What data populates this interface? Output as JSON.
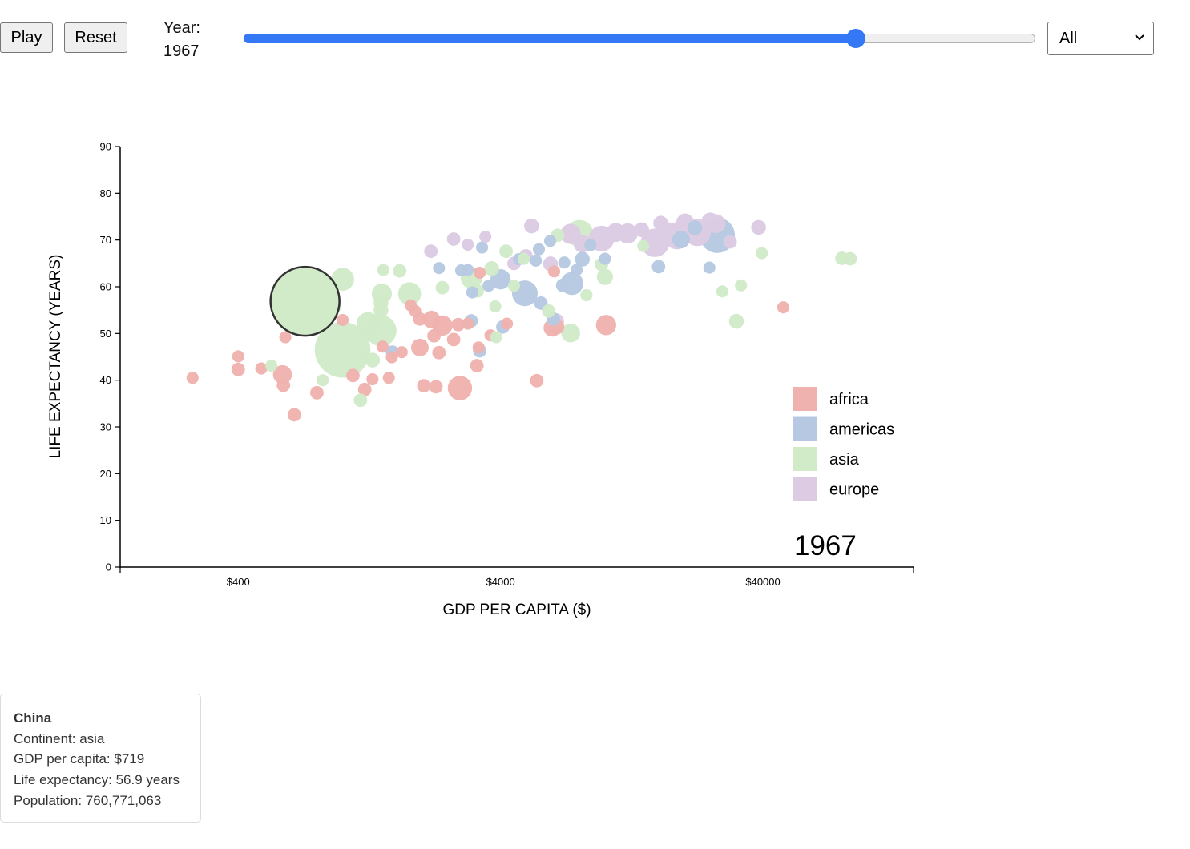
{
  "controls": {
    "play_label": "Play",
    "reset_label": "Reset",
    "year_label": "Year:",
    "year_value": "1967",
    "slider": {
      "min": 1952,
      "max": 2007,
      "value": 1967,
      "fraction": 0.773
    },
    "continent_filter": {
      "selected": "All"
    }
  },
  "colors": {
    "africa": "#efb2ae",
    "americas": "#b7c9e2",
    "asia": "#d1eac8",
    "europe": "#dccbe3",
    "accent": "#3478f6",
    "highlight_stroke": "#333333"
  },
  "chart_data": {
    "type": "scatter",
    "xlabel": "GDP PER CAPITA ($)",
    "ylabel": "LIFE EXPECTANCY (YEARS)",
    "x_scale": "log",
    "xlim": [
      142,
      150000
    ],
    "ylim": [
      0,
      90
    ],
    "x_ticks": [
      400,
      4000,
      40000
    ],
    "x_tick_labels": [
      "$400",
      "$4000",
      "$40000"
    ],
    "y_ticks": [
      0,
      10,
      20,
      30,
      40,
      50,
      60,
      70,
      80,
      90
    ],
    "y_tick_labels": [
      "0",
      "10",
      "20",
      "30",
      "40",
      "50",
      "60",
      "70",
      "80",
      "90"
    ],
    "year_watermark": "1967",
    "legend": {
      "position": "bottom-right",
      "entries": [
        "africa",
        "americas",
        "asia",
        "europe"
      ]
    },
    "highlighted": {
      "name": "China",
      "continent": "asia",
      "gdp": 719,
      "life": 56.9,
      "pop": 760771063
    },
    "points": [
      {
        "c": "africa",
        "gdp": 268,
        "life": 40.5,
        "pop": 3
      },
      {
        "c": "africa",
        "gdp": 400,
        "life": 45.1,
        "pop": 3
      },
      {
        "c": "africa",
        "gdp": 400,
        "life": 42.3,
        "pop": 4
      },
      {
        "c": "africa",
        "gdp": 490,
        "life": 42.5,
        "pop": 3
      },
      {
        "c": "africa",
        "gdp": 590,
        "life": 41.2,
        "pop": 8
      },
      {
        "c": "africa",
        "gdp": 595,
        "life": 38.9,
        "pop": 4
      },
      {
        "c": "africa",
        "gdp": 655,
        "life": 32.6,
        "pop": 4
      },
      {
        "c": "africa",
        "gdp": 605,
        "life": 49.2,
        "pop": 3
      },
      {
        "c": "africa",
        "gdp": 798,
        "life": 37.3,
        "pop": 4
      },
      {
        "c": "africa",
        "gdp": 1000,
        "life": 52.9,
        "pop": 3
      },
      {
        "c": "africa",
        "gdp": 1095,
        "life": 41.0,
        "pop": 4
      },
      {
        "c": "africa",
        "gdp": 1215,
        "life": 38.0,
        "pop": 4
      },
      {
        "c": "africa",
        "gdp": 1300,
        "life": 40.2,
        "pop": 3
      },
      {
        "c": "africa",
        "gdp": 1420,
        "life": 47.2,
        "pop": 3
      },
      {
        "c": "africa",
        "gdp": 1500,
        "life": 40.5,
        "pop": 3
      },
      {
        "c": "africa",
        "gdp": 1540,
        "life": 44.9,
        "pop": 3
      },
      {
        "c": "africa",
        "gdp": 1680,
        "life": 46.0,
        "pop": 3
      },
      {
        "c": "africa",
        "gdp": 1820,
        "life": 56.0,
        "pop": 3
      },
      {
        "c": "africa",
        "gdp": 1890,
        "life": 54.8,
        "pop": 3
      },
      {
        "c": "africa",
        "gdp": 1970,
        "life": 53.1,
        "pop": 4
      },
      {
        "c": "africa",
        "gdp": 1970,
        "life": 47.0,
        "pop": 7
      },
      {
        "c": "africa",
        "gdp": 2040,
        "life": 38.8,
        "pop": 4
      },
      {
        "c": "africa",
        "gdp": 2180,
        "life": 53.0,
        "pop": 7
      },
      {
        "c": "africa",
        "gdp": 2230,
        "life": 49.5,
        "pop": 4
      },
      {
        "c": "africa",
        "gdp": 2270,
        "life": 38.6,
        "pop": 4
      },
      {
        "c": "africa",
        "gdp": 2330,
        "life": 45.9,
        "pop": 4
      },
      {
        "c": "africa",
        "gdp": 2400,
        "life": 51.7,
        "pop": 9
      },
      {
        "c": "africa",
        "gdp": 2650,
        "life": 48.7,
        "pop": 4
      },
      {
        "c": "africa",
        "gdp": 2760,
        "life": 51.9,
        "pop": 4
      },
      {
        "c": "africa",
        "gdp": 2800,
        "life": 38.3,
        "pop": 12
      },
      {
        "c": "africa",
        "gdp": 3000,
        "life": 52.1,
        "pop": 3
      },
      {
        "c": "africa",
        "gdp": 3250,
        "life": 43.1,
        "pop": 4
      },
      {
        "c": "africa",
        "gdp": 3300,
        "life": 47.0,
        "pop": 3
      },
      {
        "c": "africa",
        "gdp": 3330,
        "life": 63.0,
        "pop": 3
      },
      {
        "c": "africa",
        "gdp": 3660,
        "life": 49.6,
        "pop": 3
      },
      {
        "c": "africa",
        "gdp": 4230,
        "life": 52.1,
        "pop": 3
      },
      {
        "c": "africa",
        "gdp": 5500,
        "life": 39.9,
        "pop": 4
      },
      {
        "c": "africa",
        "gdp": 6300,
        "life": 51.2,
        "pop": 7
      },
      {
        "c": "africa",
        "gdp": 6400,
        "life": 63.3,
        "pop": 3
      },
      {
        "c": "africa",
        "gdp": 6560,
        "life": 51.4,
        "pop": 5
      },
      {
        "c": "africa",
        "gdp": 10100,
        "life": 51.8,
        "pop": 9
      },
      {
        "c": "africa",
        "gdp": 47800,
        "life": 55.6,
        "pop": 3
      },
      {
        "c": "americas",
        "gdp": 1550,
        "life": 46.0,
        "pop": 4
      },
      {
        "c": "americas",
        "gdp": 2330,
        "life": 64.0,
        "pop": 3
      },
      {
        "c": "americas",
        "gdp": 2830,
        "life": 63.5,
        "pop": 3
      },
      {
        "c": "americas",
        "gdp": 3000,
        "life": 63.6,
        "pop": 3
      },
      {
        "c": "americas",
        "gdp": 3090,
        "life": 52.7,
        "pop": 4
      },
      {
        "c": "americas",
        "gdp": 3120,
        "life": 58.8,
        "pop": 3
      },
      {
        "c": "americas",
        "gdp": 3400,
        "life": 68.4,
        "pop": 3
      },
      {
        "c": "americas",
        "gdp": 3330,
        "life": 46.3,
        "pop": 4
      },
      {
        "c": "americas",
        "gdp": 3600,
        "life": 60.2,
        "pop": 3
      },
      {
        "c": "americas",
        "gdp": 4000,
        "life": 61.6,
        "pop": 9
      },
      {
        "c": "americas",
        "gdp": 4080,
        "life": 51.4,
        "pop": 4
      },
      {
        "c": "americas",
        "gdp": 4700,
        "life": 65.9,
        "pop": 3
      },
      {
        "c": "americas",
        "gdp": 4950,
        "life": 58.6,
        "pop": 13
      },
      {
        "c": "americas",
        "gdp": 5450,
        "life": 65.6,
        "pop": 3
      },
      {
        "c": "americas",
        "gdp": 5600,
        "life": 68.0,
        "pop": 3
      },
      {
        "c": "americas",
        "gdp": 5700,
        "life": 56.5,
        "pop": 4
      },
      {
        "c": "americas",
        "gdp": 6180,
        "life": 69.8,
        "pop": 3
      },
      {
        "c": "americas",
        "gdp": 6360,
        "life": 53.1,
        "pop": 4
      },
      {
        "c": "americas",
        "gdp": 6900,
        "life": 60.3,
        "pop": 4
      },
      {
        "c": "americas",
        "gdp": 7000,
        "life": 65.2,
        "pop": 3
      },
      {
        "c": "americas",
        "gdp": 7480,
        "life": 60.7,
        "pop": 11
      },
      {
        "c": "americas",
        "gdp": 7800,
        "life": 63.6,
        "pop": 3
      },
      {
        "c": "americas",
        "gdp": 8200,
        "life": 65.9,
        "pop": 5
      },
      {
        "c": "americas",
        "gdp": 8800,
        "life": 68.9,
        "pop": 3
      },
      {
        "c": "americas",
        "gdp": 10000,
        "life": 66.0,
        "pop": 3
      },
      {
        "c": "americas",
        "gdp": 16000,
        "life": 64.3,
        "pop": 4
      },
      {
        "c": "americas",
        "gdp": 19500,
        "life": 70.1,
        "pop": 7
      },
      {
        "c": "americas",
        "gdp": 22000,
        "life": 72.6,
        "pop": 5
      },
      {
        "c": "americas",
        "gdp": 26800,
        "life": 71.0,
        "pop": 20
      },
      {
        "c": "americas",
        "gdp": 25000,
        "life": 64.1,
        "pop": 3
      },
      {
        "c": "asia",
        "gdp": 719,
        "life": 56.9,
        "pop": 41
      },
      {
        "c": "asia",
        "gdp": 1000,
        "life": 46.5,
        "pop": 35
      },
      {
        "c": "asia",
        "gdp": 535,
        "life": 43.1,
        "pop": 3
      },
      {
        "c": "asia",
        "gdp": 1000,
        "life": 61.6,
        "pop": 11
      },
      {
        "c": "asia",
        "gdp": 1250,
        "life": 52.1,
        "pop": 11
      },
      {
        "c": "asia",
        "gdp": 1400,
        "life": 50.6,
        "pop": 17
      },
      {
        "c": "asia",
        "gdp": 1410,
        "life": 58.5,
        "pop": 9
      },
      {
        "c": "asia",
        "gdp": 1430,
        "life": 63.6,
        "pop": 3
      },
      {
        "c": "asia",
        "gdp": 1300,
        "life": 44.3,
        "pop": 5
      },
      {
        "c": "asia",
        "gdp": 1400,
        "life": 55.0,
        "pop": 5
      },
      {
        "c": "asia",
        "gdp": 1400,
        "life": 56.5,
        "pop": 5
      },
      {
        "c": "asia",
        "gdp": 1170,
        "life": 35.7,
        "pop": 4
      },
      {
        "c": "asia",
        "gdp": 940,
        "life": 55.8,
        "pop": 3
      },
      {
        "c": "asia",
        "gdp": 840,
        "life": 40.0,
        "pop": 3
      },
      {
        "c": "asia",
        "gdp": 1650,
        "life": 63.4,
        "pop": 4
      },
      {
        "c": "asia",
        "gdp": 1800,
        "life": 58.5,
        "pop": 11
      },
      {
        "c": "asia",
        "gdp": 2400,
        "life": 59.8,
        "pop": 4
      },
      {
        "c": "asia",
        "gdp": 3100,
        "life": 61.9,
        "pop": 10
      },
      {
        "c": "asia",
        "gdp": 3260,
        "life": 59.1,
        "pop": 4
      },
      {
        "c": "asia",
        "gdp": 3700,
        "life": 63.9,
        "pop": 5
      },
      {
        "c": "asia",
        "gdp": 3820,
        "life": 55.8,
        "pop": 3
      },
      {
        "c": "asia",
        "gdp": 4500,
        "life": 60.2,
        "pop": 3
      },
      {
        "c": "asia",
        "gdp": 4200,
        "life": 67.6,
        "pop": 4
      },
      {
        "c": "asia",
        "gdp": 4900,
        "life": 66.0,
        "pop": 3
      },
      {
        "c": "asia",
        "gdp": 6100,
        "life": 54.8,
        "pop": 4
      },
      {
        "c": "asia",
        "gdp": 6600,
        "life": 71.0,
        "pop": 4
      },
      {
        "c": "asia",
        "gdp": 7400,
        "life": 50.1,
        "pop": 8
      },
      {
        "c": "asia",
        "gdp": 8000,
        "life": 71.4,
        "pop": 14
      },
      {
        "c": "asia",
        "gdp": 8500,
        "life": 58.2,
        "pop": 3
      },
      {
        "c": "asia",
        "gdp": 9700,
        "life": 64.8,
        "pop": 4
      },
      {
        "c": "asia",
        "gdp": 10000,
        "life": 62.1,
        "pop": 6
      },
      {
        "c": "asia",
        "gdp": 14000,
        "life": 68.7,
        "pop": 3
      },
      {
        "c": "asia",
        "gdp": 28000,
        "life": 59.0,
        "pop": 3
      },
      {
        "c": "asia",
        "gdp": 31700,
        "life": 52.6,
        "pop": 5
      },
      {
        "c": "asia",
        "gdp": 33000,
        "life": 60.3,
        "pop": 3
      },
      {
        "c": "asia",
        "gdp": 39600,
        "life": 67.2,
        "pop": 3
      },
      {
        "c": "asia",
        "gdp": 80000,
        "life": 66.1,
        "pop": 4
      },
      {
        "c": "asia",
        "gdp": 86000,
        "life": 66.0,
        "pop": 4
      },
      {
        "c": "asia",
        "gdp": 3850,
        "life": 49.2,
        "pop": 3
      },
      {
        "c": "europe",
        "gdp": 2170,
        "life": 67.6,
        "pop": 4
      },
      {
        "c": "europe",
        "gdp": 2650,
        "life": 70.2,
        "pop": 4
      },
      {
        "c": "europe",
        "gdp": 3000,
        "life": 69.0,
        "pop": 3
      },
      {
        "c": "europe",
        "gdp": 3500,
        "life": 70.7,
        "pop": 3
      },
      {
        "c": "europe",
        "gdp": 4500,
        "life": 65.0,
        "pop": 4
      },
      {
        "c": "europe",
        "gdp": 5000,
        "life": 66.6,
        "pop": 4
      },
      {
        "c": "europe",
        "gdp": 5250,
        "life": 73.0,
        "pop": 5
      },
      {
        "c": "europe",
        "gdp": 6200,
        "life": 64.9,
        "pop": 5
      },
      {
        "c": "europe",
        "gdp": 6500,
        "life": 52.6,
        "pop": 6
      },
      {
        "c": "europe",
        "gdp": 7400,
        "life": 71.3,
        "pop": 9
      },
      {
        "c": "europe",
        "gdp": 8200,
        "life": 69.2,
        "pop": 7
      },
      {
        "c": "europe",
        "gdp": 9700,
        "life": 70.3,
        "pop": 13
      },
      {
        "c": "europe",
        "gdp": 11000,
        "life": 71.6,
        "pop": 8
      },
      {
        "c": "europe",
        "gdp": 12200,
        "life": 71.4,
        "pop": 9
      },
      {
        "c": "europe",
        "gdp": 13800,
        "life": 72.2,
        "pop": 5
      },
      {
        "c": "europe",
        "gdp": 15500,
        "life": 69.4,
        "pop": 15
      },
      {
        "c": "europe",
        "gdp": 16300,
        "life": 73.6,
        "pop": 5
      },
      {
        "c": "europe",
        "gdp": 17300,
        "life": 72.1,
        "pop": 6
      },
      {
        "c": "europe",
        "gdp": 18800,
        "life": 70.9,
        "pop": 14
      },
      {
        "c": "europe",
        "gdp": 20200,
        "life": 73.8,
        "pop": 7
      },
      {
        "c": "europe",
        "gdp": 22500,
        "life": 71.6,
        "pop": 14
      },
      {
        "c": "europe",
        "gdp": 25200,
        "life": 74.0,
        "pop": 7
      },
      {
        "c": "europe",
        "gdp": 26500,
        "life": 73.5,
        "pop": 8
      },
      {
        "c": "europe",
        "gdp": 30000,
        "life": 69.6,
        "pop": 4
      },
      {
        "c": "europe",
        "gdp": 38500,
        "life": 72.7,
        "pop": 5
      }
    ]
  },
  "tooltip": {
    "title": "China",
    "continent_line": "Continent: asia",
    "gdp_line": "GDP per capita: $719",
    "life_line": "Life expectancy: 56.9 years",
    "pop_line": "Population: 760,771,063"
  }
}
